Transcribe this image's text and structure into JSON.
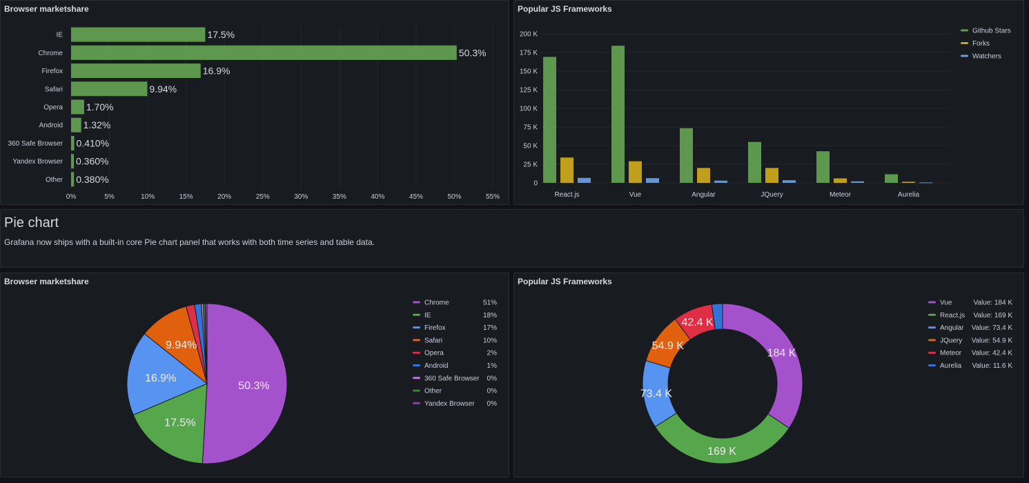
{
  "panels": {
    "bar_browser": {
      "title": "Browser marketshare"
    },
    "bar_js": {
      "title": "Popular JS Frameworks"
    },
    "text": {
      "title": "Pie chart",
      "body": "Grafana now ships with a built-in core Pie chart panel that works with both time series and table data."
    },
    "pie_browser": {
      "title": "Browser marketshare"
    },
    "pie_js": {
      "title": "Popular JS Frameworks"
    }
  },
  "colors": {
    "background": "#111217",
    "panel": "#181b1f",
    "border": "#2b2e36",
    "bar_green": "#629e51"
  },
  "chart_data": [
    {
      "type": "bar",
      "orientation": "horizontal",
      "categories": [
        "IE",
        "Chrome",
        "Firefox",
        "Safari",
        "Opera",
        "Android",
        "360 Safe Browser",
        "Yandex Browser",
        "Other"
      ],
      "values": [
        17.5,
        50.3,
        16.9,
        9.94,
        1.7,
        1.32,
        0.41,
        0.36,
        0.38
      ],
      "value_labels": [
        "17.5%",
        "50.3%",
        "16.9%",
        "9.94%",
        "1.70%",
        "1.32%",
        "0.410%",
        "0.360%",
        "0.380%"
      ],
      "xlim": [
        0,
        55
      ],
      "xticks": [
        "0%",
        "5%",
        "10%",
        "15%",
        "20%",
        "25%",
        "30%",
        "35%",
        "40%",
        "45%",
        "50%",
        "55%"
      ],
      "grid": true,
      "color": "#629e51"
    },
    {
      "type": "bar",
      "categories": [
        "React.js",
        "Vue",
        "Angular",
        "JQuery",
        "Meteor",
        "Aurelia"
      ],
      "series": [
        {
          "name": "Github Stars",
          "color": "#629e51",
          "values": [
            169000,
            184000,
            73400,
            54900,
            42400,
            11600
          ]
        },
        {
          "name": "Forks",
          "color": "#c9a61c",
          "values": [
            34000,
            29000,
            20000,
            20000,
            6000,
            1500
          ]
        },
        {
          "name": "Watchers",
          "color": "#6e9bd8",
          "values": [
            6700,
            6300,
            3000,
            3500,
            2000,
            500
          ]
        }
      ],
      "ylim": [
        0,
        200000
      ],
      "yticks": [
        "0",
        "25 K",
        "50 K",
        "75 K",
        "100 K",
        "125 K",
        "150 K",
        "175 K",
        "200 K"
      ],
      "grid": true,
      "legend_placement": "top-right"
    },
    {
      "type": "pie",
      "slices": [
        {
          "name": "Chrome",
          "value": 50.3,
          "label": "50.3%",
          "legend_value": "51%",
          "color": "#a352cc"
        },
        {
          "name": "IE",
          "value": 17.5,
          "label": "17.5%",
          "legend_value": "18%",
          "color": "#56a64b"
        },
        {
          "name": "Firefox",
          "value": 16.9,
          "label": "16.9%",
          "legend_value": "17%",
          "color": "#5794f2"
        },
        {
          "name": "Safari",
          "value": 9.94,
          "label": "9.94%",
          "legend_value": "10%",
          "color": "#e0600e"
        },
        {
          "name": "Opera",
          "value": 1.7,
          "label": "",
          "legend_value": "2%",
          "color": "#e02f44"
        },
        {
          "name": "Android",
          "value": 1.32,
          "label": "",
          "legend_value": "1%",
          "color": "#3274d9"
        },
        {
          "name": "360 Safe Browser",
          "value": 0.41,
          "label": "",
          "legend_value": "0%",
          "color": "#b877d9"
        },
        {
          "name": "Other",
          "value": 0.38,
          "label": "",
          "legend_value": "0%",
          "color": "#37872d"
        },
        {
          "name": "Yandex Browser",
          "value": 0.36,
          "label": "",
          "legend_value": "0%",
          "color": "#8f3bb8"
        }
      ],
      "legend_placement": "right"
    },
    {
      "type": "pie",
      "variant": "donut",
      "slices": [
        {
          "name": "Vue",
          "value": 184000,
          "label": "184 K",
          "legend_value": "Value: 184 K",
          "color": "#a352cc"
        },
        {
          "name": "React.js",
          "value": 169000,
          "label": "169 K",
          "legend_value": "Value: 169 K",
          "color": "#56a64b"
        },
        {
          "name": "Angular",
          "value": 73400,
          "label": "73.4 K",
          "legend_value": "Value: 73.4 K",
          "color": "#5794f2"
        },
        {
          "name": "JQuery",
          "value": 54900,
          "label": "54.9 K",
          "legend_value": "Value: 54.9 K",
          "color": "#e0600e"
        },
        {
          "name": "Meteor",
          "value": 42400,
          "label": "42.4 K",
          "legend_value": "Value: 42.4 K",
          "color": "#e02f44"
        },
        {
          "name": "Aurelia",
          "value": 11600,
          "label": "",
          "legend_value": "Value: 11.6 K",
          "color": "#3274d9"
        }
      ],
      "legend_placement": "right"
    }
  ]
}
